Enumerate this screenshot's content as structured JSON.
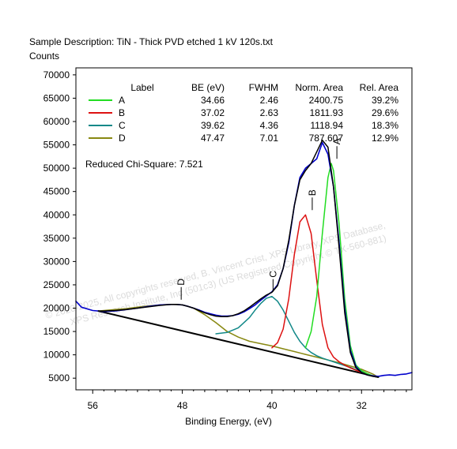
{
  "header": {
    "title": "Sample Description:  TiN - Thick PVD etched 1 kV 120s.txt",
    "y_unit": "Counts"
  },
  "watermark": {
    "line1": "© 2020-2025,  All copyrights reserved,   B. Vincent Crist,  XPS Library, XPS Database,",
    "line2": "XPS Research Institute, Inc (501c3)   (US Registered Copyright © TX-560-881)"
  },
  "legend": {
    "headers": [
      "Label",
      "BE (eV)",
      "FWHM",
      "Norm. Area",
      "Rel. Area"
    ],
    "rows": [
      {
        "label": "A",
        "be": "34.66",
        "fwhm": "2.46",
        "area": "2400.75",
        "rel": "39.2%",
        "color": "#22dd22"
      },
      {
        "label": "B",
        "be": "37.02",
        "fwhm": "2.63",
        "area": "1811.93",
        "rel": "29.6%",
        "color": "#dd1111"
      },
      {
        "label": "C",
        "be": "39.62",
        "fwhm": "4.36",
        "area": "1118.94",
        "rel": "18.3%",
        "color": "#118888"
      },
      {
        "label": "D",
        "be": "47.47",
        "fwhm": "7.01",
        "area": "787.607",
        "rel": "12.9%",
        "color": "#888811"
      }
    ]
  },
  "chi_square": "Reduced Chi-Square: 7.521",
  "chart_data": {
    "type": "line",
    "title": "Sample Description:  TiN - Thick PVD etched 1 kV 120s.txt",
    "xlabel": "Binding Energy, (eV)",
    "ylabel": "Counts",
    "x_reversed": true,
    "xlim": [
      57.5,
      27.5
    ],
    "ylim": [
      2500,
      71500
    ],
    "x_ticks": [
      56,
      48,
      40,
      32
    ],
    "y_ticks": [
      5000,
      10000,
      15000,
      20000,
      25000,
      30000,
      35000,
      40000,
      45000,
      50000,
      55000,
      60000,
      65000,
      70000
    ],
    "grid": false,
    "legend_position": "top",
    "peak_label_positions": {
      "A": 34.2,
      "B": 36.4,
      "C": 39.9,
      "D": 48.1
    },
    "series": [
      {
        "name": "Data",
        "color": "#0000cc",
        "x": [
          57.5,
          57.0,
          56.0,
          55.0,
          54.0,
          53.0,
          52.0,
          51.0,
          50.0,
          49.0,
          48.5,
          48.0,
          47.5,
          47.0,
          46.5,
          46.0,
          45.5,
          45.0,
          44.5,
          44.0,
          43.5,
          43.0,
          42.5,
          42.0,
          41.5,
          41.0,
          40.5,
          40.0,
          39.5,
          39.0,
          38.5,
          38.0,
          37.5,
          37.0,
          36.5,
          36.0,
          35.5,
          35.0,
          34.5,
          34.0,
          33.5,
          33.0,
          32.5,
          32.0,
          31.5,
          31.0,
          30.5,
          30.0,
          29.5,
          29.0,
          28.5,
          28.0,
          27.5
        ],
        "y": [
          21500,
          20200,
          19500,
          19300,
          19400,
          19700,
          20000,
          20400,
          20700,
          20800,
          20800,
          20700,
          20400,
          20000,
          19600,
          19100,
          18800,
          18500,
          18300,
          18300,
          18400,
          18700,
          19200,
          19900,
          20700,
          21700,
          22600,
          23500,
          25000,
          28500,
          34000,
          42000,
          48000,
          50000,
          51000,
          52000,
          55500,
          53000,
          46000,
          34000,
          20000,
          11000,
          7500,
          6200,
          5700,
          5500,
          5400,
          5600,
          5700,
          5600,
          5800,
          5900,
          6200
        ]
      },
      {
        "name": "Fit",
        "color": "#000000",
        "x": [
          55.5,
          55.0,
          54.0,
          53.0,
          52.0,
          51.0,
          50.0,
          49.0,
          48.5,
          48.0,
          47.5,
          47.0,
          46.5,
          46.0,
          45.5,
          45.0,
          44.5,
          44.0,
          43.5,
          43.0,
          42.5,
          42.0,
          41.5,
          41.0,
          40.5,
          40.0,
          39.5,
          39.0,
          38.5,
          38.0,
          37.5,
          37.0,
          36.5,
          36.0,
          35.5,
          35.0,
          34.5,
          34.0,
          33.5,
          33.0,
          32.5,
          32.0,
          31.5,
          31.0,
          30.5
        ],
        "y": [
          19400,
          19400,
          19500,
          19700,
          20000,
          20300,
          20600,
          20800,
          20800,
          20700,
          20400,
          20000,
          19500,
          19000,
          18600,
          18300,
          18200,
          18200,
          18400,
          18800,
          19400,
          20200,
          21100,
          22000,
          22800,
          23400,
          24800,
          28500,
          34500,
          42000,
          47500,
          49500,
          51000,
          53500,
          56000,
          54500,
          46000,
          33000,
          19000,
          10500,
          7200,
          6200,
          5700,
          5400,
          5200
        ]
      },
      {
        "name": "A",
        "color": "#22dd22",
        "x": [
          37.0,
          36.5,
          36.0,
          35.5,
          35.0,
          34.7,
          34.5,
          34.0,
          33.5,
          33.0,
          32.5,
          32.0,
          31.5,
          31.0,
          30.5
        ],
        "y": [
          11500,
          15000,
          22500,
          36000,
          48000,
          51000,
          49500,
          38000,
          22000,
          12000,
          7800,
          6600,
          6000,
          5500,
          5200
        ]
      },
      {
        "name": "B",
        "color": "#dd1111",
        "x": [
          40.0,
          39.5,
          39.0,
          38.5,
          38.0,
          37.5,
          37.0,
          36.5,
          36.0,
          35.5,
          35.0,
          34.5,
          34.0,
          33.5,
          33.0,
          32.5,
          32.0,
          31.5,
          31.0,
          30.5
        ],
        "y": [
          11500,
          12600,
          15500,
          22000,
          31500,
          38500,
          40000,
          36000,
          26000,
          16500,
          11500,
          9500,
          8500,
          7800,
          7200,
          6700,
          6200,
          5800,
          5500,
          5200
        ]
      },
      {
        "name": "C",
        "color": "#118888",
        "x": [
          45.0,
          44.0,
          43.0,
          42.0,
          41.5,
          41.0,
          40.5,
          40.0,
          39.5,
          39.0,
          38.5,
          38.0,
          37.5,
          37.0,
          36.5,
          36.0,
          35.5,
          35.0,
          34.5,
          34.0,
          33.5,
          33.0,
          32.5,
          32.0,
          31.5,
          31.0,
          30.5
        ],
        "y": [
          14500,
          14800,
          15800,
          18000,
          19600,
          21000,
          22100,
          22500,
          21500,
          19600,
          17200,
          14800,
          12900,
          11500,
          10500,
          9800,
          9300,
          8900,
          8500,
          8100,
          7700,
          7300,
          6800,
          6300,
          5800,
          5500,
          5200
        ]
      },
      {
        "name": "D",
        "color": "#888811",
        "x": [
          55.5,
          54.0,
          53.0,
          52.0,
          51.0,
          50.0,
          49.0,
          48.0,
          47.0,
          46.0,
          45.0,
          44.0,
          43.0,
          42.0,
          41.0,
          40.0,
          39.0,
          38.0,
          37.0,
          36.0,
          35.0,
          34.0,
          33.0,
          32.0,
          31.0,
          30.5
        ],
        "y": [
          19400,
          19700,
          19900,
          20200,
          20500,
          20700,
          20800,
          20700,
          20000,
          18600,
          16900,
          15000,
          13800,
          12900,
          12400,
          11900,
          11300,
          10700,
          10100,
          9500,
          8900,
          8300,
          7600,
          6900,
          5900,
          5200
        ]
      },
      {
        "name": "Background",
        "color": "#000000",
        "x": [
          55.5,
          30.5
        ],
        "y": [
          19400,
          5200
        ]
      }
    ]
  }
}
